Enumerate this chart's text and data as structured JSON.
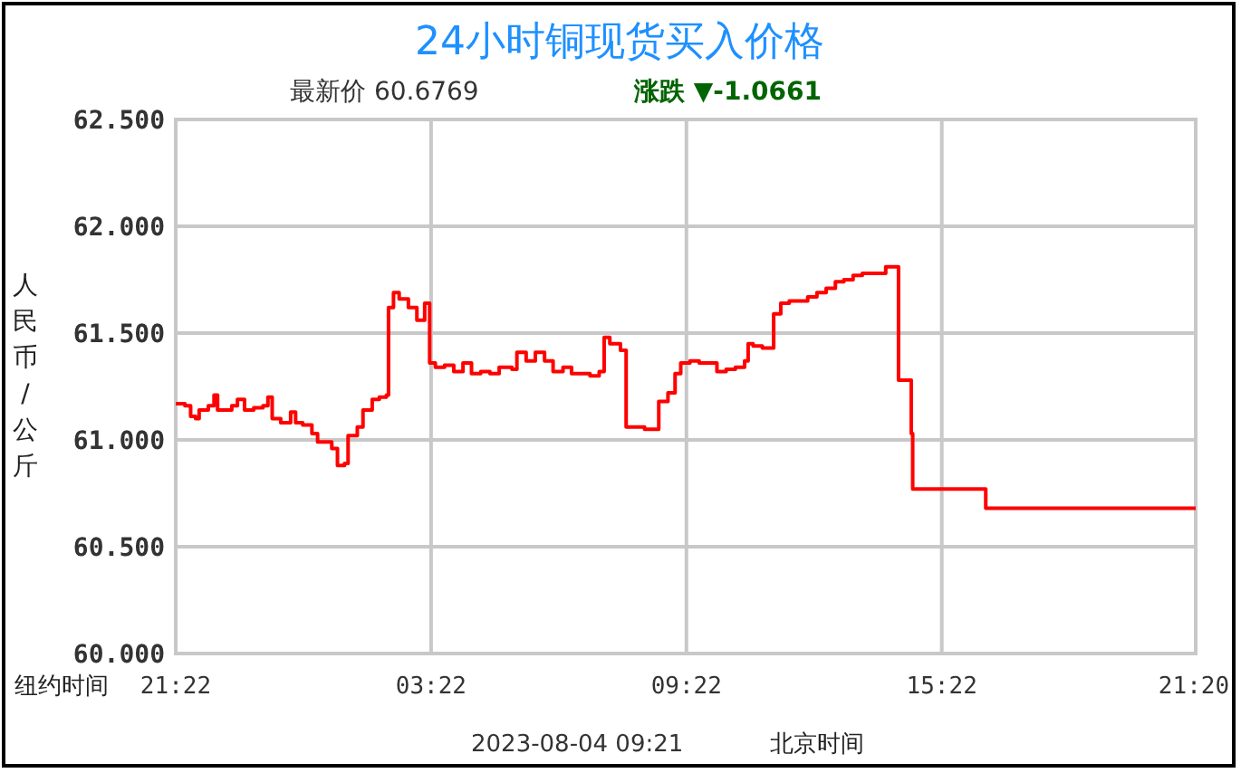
{
  "chart_data": {
    "type": "step",
    "title": "24小时铜现货买入价格",
    "subtitle": "最新价  60.6769",
    "ylabel": "人民币/公斤",
    "annotations": [
      "涨跌 ▼-1.0661",
      "纽约时间",
      "2023-08-04 09:21",
      "北京时间"
    ],
    "xlim": [
      "2023-08-02T21:22",
      "2023-08-03T21:20"
    ],
    "xticks": [
      {
        "value": "2023-08-02T21:22",
        "label": "21:22"
      },
      {
        "value": "2023-08-03T03:22",
        "label": "03:22"
      },
      {
        "value": "2023-08-03T09:22",
        "label": "09:22"
      },
      {
        "value": "2023-08-03T15:22",
        "label": "15:22"
      },
      {
        "value": "2023-08-03T21:20",
        "label": "21:20"
      }
    ],
    "ylim": [
      60,
      62.5
    ],
    "yticks": [
      {
        "value": 60,
        "label": "60.000"
      },
      {
        "value": 60.5,
        "label": "60.500"
      },
      {
        "value": 61,
        "label": "61.000"
      },
      {
        "value": 61.5,
        "label": "61.500"
      },
      {
        "value": 62,
        "label": "62.000"
      },
      {
        "value": 62.5,
        "label": "62.500"
      }
    ],
    "grid": true,
    "line_style": "solid",
    "marker": "none",
    "series": [
      {
        "color": "#ff0000",
        "x": [
          "2023-08-02T21:22",
          "2023-08-02T21:35",
          "2023-08-02T21:43",
          "2023-08-02T21:50",
          "2023-08-02T21:55",
          "2023-08-02T22:08",
          "2023-08-02T22:16",
          "2023-08-02T22:21",
          "2023-08-02T22:34",
          "2023-08-02T22:41",
          "2023-08-02T22:49",
          "2023-08-02T22:59",
          "2023-08-02T23:12",
          "2023-08-02T23:25",
          "2023-08-02T23:32",
          "2023-08-02T23:38",
          "2023-08-02T23:50",
          "2023-08-03T00:04",
          "2023-08-03T00:11",
          "2023-08-03T00:21",
          "2023-08-03T00:34",
          "2023-08-03T00:42",
          "2023-08-03T00:55",
          "2023-08-03T01:02",
          "2023-08-03T01:10",
          "2023-08-03T01:20",
          "2023-08-03T01:25",
          "2023-08-03T01:38",
          "2023-08-03T01:46",
          "2023-08-03T01:59",
          "2023-08-03T02:09",
          "2023-08-03T02:19",
          "2023-08-03T02:22",
          "2023-08-03T02:29",
          "2023-08-03T02:37",
          "2023-08-03T02:50",
          "2023-08-03T03:02",
          "2023-08-03T03:13",
          "2023-08-03T03:20",
          "2023-08-03T03:28",
          "2023-08-03T03:41",
          "2023-08-03T03:54",
          "2023-08-03T04:07",
          "2023-08-03T04:19",
          "2023-08-03T04:32",
          "2023-08-03T04:45",
          "2023-08-03T04:58",
          "2023-08-03T05:16",
          "2023-08-03T05:23",
          "2023-08-03T05:36",
          "2023-08-03T05:49",
          "2023-08-03T06:02",
          "2023-08-03T06:14",
          "2023-08-03T06:28",
          "2023-08-03T06:40",
          "2023-08-03T06:53",
          "2023-08-03T07:06",
          "2023-08-03T07:19",
          "2023-08-03T07:26",
          "2023-08-03T07:34",
          "2023-08-03T07:49",
          "2023-08-03T07:57",
          "2023-08-03T08:10",
          "2023-08-03T08:23",
          "2023-08-03T08:35",
          "2023-08-03T08:43",
          "2023-08-03T08:56",
          "2023-08-03T09:06",
          "2023-08-03T09:14",
          "2023-08-03T09:27",
          "2023-08-03T09:40",
          "2023-08-03T09:52",
          "2023-08-03T10:05",
          "2023-08-03T10:18",
          "2023-08-03T10:31",
          "2023-08-03T10:44",
          "2023-08-03T10:49",
          "2023-08-03T10:56",
          "2023-08-03T11:09",
          "2023-08-03T11:17",
          "2023-08-03T11:25",
          "2023-08-03T11:35",
          "2023-08-03T11:47",
          "2023-08-03T12:00",
          "2023-08-03T12:13",
          "2023-08-03T12:26",
          "2023-08-03T12:39",
          "2023-08-03T12:52",
          "2023-08-03T13:04",
          "2023-08-03T13:17",
          "2023-08-03T13:30",
          "2023-08-03T13:50",
          "2023-08-03T14:03",
          "2023-08-03T14:13",
          "2023-08-03T14:21",
          "2023-08-03T14:34",
          "2023-08-03T14:39",
          "2023-08-03T14:41",
          "2023-08-03T14:59",
          "2023-08-03T15:25",
          "2023-08-03T16:19",
          "2023-08-03T16:24",
          "2023-08-03T17:08",
          "2023-08-03T18:50",
          "2023-08-03T21:20"
        ],
        "values": [
          61.17,
          61.16,
          61.11,
          61.1,
          61.14,
          61.16,
          61.21,
          61.14,
          61.14,
          61.16,
          61.19,
          61.14,
          61.15,
          61.16,
          61.2,
          61.1,
          61.08,
          61.13,
          61.08,
          61.07,
          61.03,
          60.99,
          60.99,
          60.96,
          60.88,
          60.89,
          61.02,
          61.06,
          61.14,
          61.19,
          61.2,
          61.21,
          61.62,
          61.69,
          61.66,
          61.62,
          61.56,
          61.64,
          61.36,
          61.34,
          61.35,
          61.32,
          61.36,
          61.31,
          61.32,
          61.31,
          61.34,
          61.33,
          61.41,
          61.37,
          61.41,
          61.37,
          61.32,
          61.34,
          61.31,
          61.31,
          61.3,
          61.32,
          61.48,
          61.45,
          61.42,
          61.06,
          61.06,
          61.05,
          61.05,
          61.18,
          61.22,
          61.31,
          61.36,
          61.37,
          61.36,
          61.36,
          61.32,
          61.33,
          61.34,
          61.37,
          61.45,
          61.44,
          61.43,
          61.43,
          61.59,
          61.64,
          61.65,
          61.65,
          61.67,
          61.69,
          61.71,
          61.74,
          61.75,
          61.77,
          61.78,
          61.78,
          61.81,
          61.81,
          61.28,
          61.28,
          61.03,
          60.77,
          60.77,
          60.77,
          60.77,
          60.68,
          60.68,
          60.68,
          60.68
        ]
      }
    ]
  }
}
